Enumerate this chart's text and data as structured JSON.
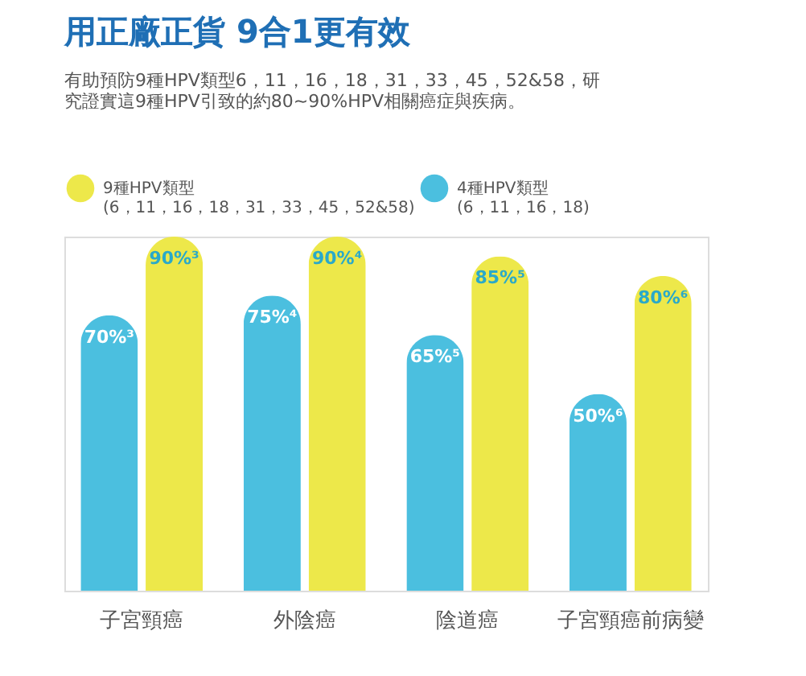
{
  "chart_data": {
    "type": "bar",
    "title": "用正廠正貨 9合1更有效",
    "subtitle": "有助預防9種HPV類型6，11，16，18，31，33，45，52&58，研究證實這9種HPV引致的約80~90%HPV相關癌症與疾病。",
    "categories": [
      "子宮頸癌",
      "外陰癌",
      "陰道癌",
      "子宮頸癌前病變"
    ],
    "series": [
      {
        "name": "4種HPV類型\n(6，11，16，18)",
        "color": "#4bbfdf",
        "values": [
          70,
          75,
          65,
          50
        ],
        "value_labels": [
          "70%³",
          "75%⁴",
          "65%⁵",
          "50%⁶"
        ]
      },
      {
        "name": "9種HPV類型\n(6，11，16，18，31，33，45，52&58)",
        "color": "#ede84a",
        "values": [
          90,
          90,
          85,
          80
        ],
        "value_labels": [
          "90%³",
          "90%⁴",
          "85%⁵",
          "80%⁶"
        ]
      }
    ],
    "legend": "top"
  }
}
